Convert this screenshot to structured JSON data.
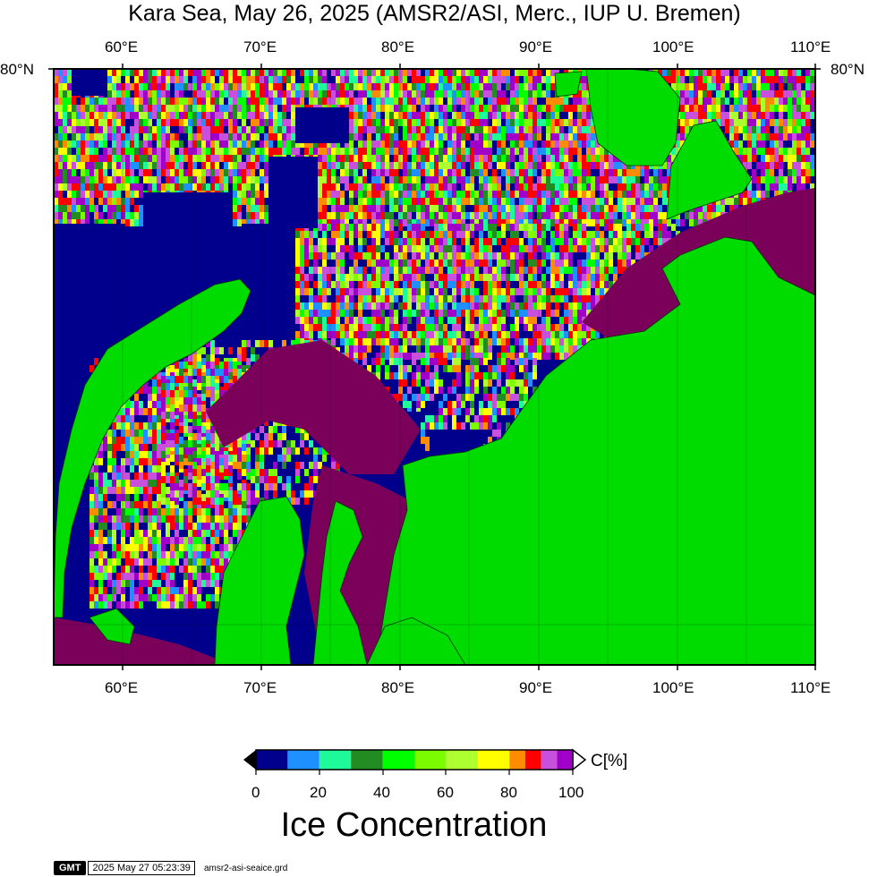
{
  "title": "Kara Sea, May 26, 2025 (AMSR2/ASI, Merc., IUP U. Bremen)",
  "lon_labels": [
    "60°E",
    "70°E",
    "80°E",
    "90°E",
    "100°E",
    "110°E"
  ],
  "lat_labels": {
    "left": "80°N",
    "right": "80°N"
  },
  "map": {
    "lon_range": [
      55,
      110
    ],
    "legend_variable": "Ice Concentration",
    "colors": {
      "ocean_open": "#00008c",
      "land": "#00dc00",
      "fast_ice": "#7a005a"
    }
  },
  "colorbar": {
    "unit_label": "C[%]",
    "tick_labels": [
      "0",
      "20",
      "40",
      "60",
      "80",
      "100"
    ],
    "title": "Ice Concentration",
    "colors": [
      "#00008c",
      "#1e90ff",
      "#1efa9a",
      "#228b22",
      "#00ff00",
      "#7cfc00",
      "#adff2f",
      "#ffff00",
      "#ff8c00",
      "#ff0000",
      "#c850dc",
      "#a000c8"
    ]
  },
  "footer": {
    "logo": "GMT",
    "timestamp": "2025 May 27 05:23:39",
    "filename": "amsr2-asi-seaice.grd"
  }
}
